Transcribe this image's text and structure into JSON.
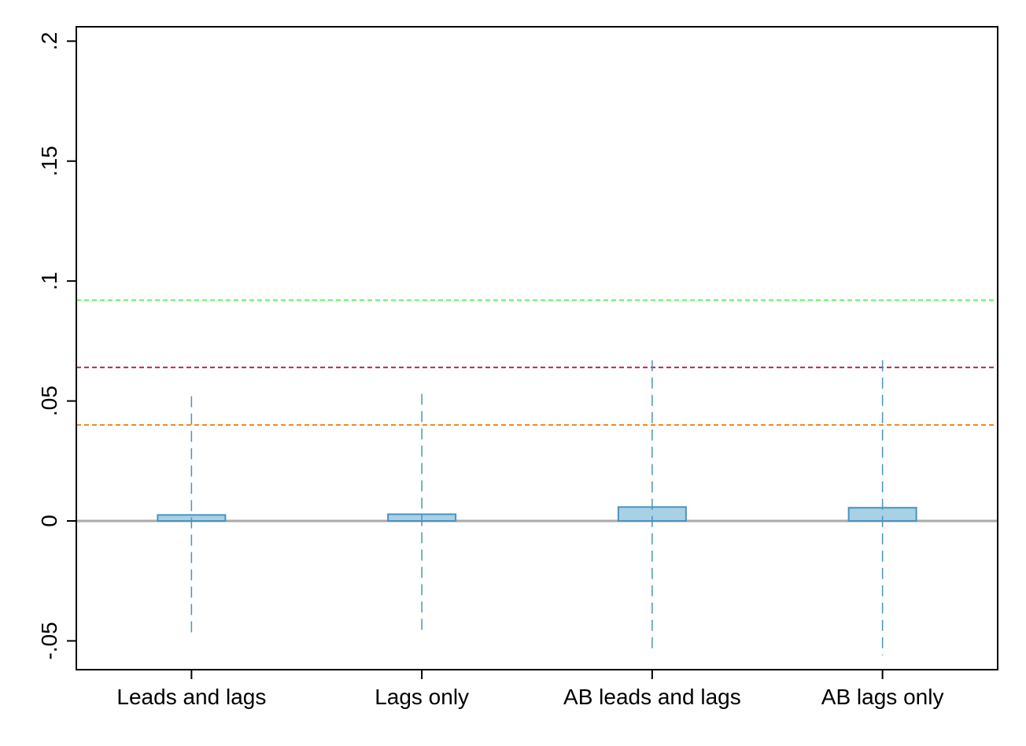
{
  "chart_data": {
    "type": "bar",
    "categories": [
      "Leads and lags",
      "Lags only",
      "AB leads and lags",
      "AB lags only"
    ],
    "values": [
      0.0025,
      0.0028,
      0.0058,
      0.0055
    ],
    "error_bars": [
      {
        "low": -0.049,
        "high": 0.052
      },
      {
        "low": -0.048,
        "high": 0.053
      },
      {
        "low": -0.055,
        "high": 0.067
      },
      {
        "low": -0.056,
        "high": 0.067
      }
    ],
    "reference_lines": [
      {
        "value": 0.092,
        "color": "#66ee66"
      },
      {
        "value": 0.064,
        "color": "#c0264a"
      },
      {
        "value": 0.04,
        "color": "#f08a24"
      },
      {
        "value": 0.0,
        "color": "#aaaaaa"
      }
    ],
    "yticks": [
      -0.05,
      0,
      0.05,
      0.1,
      0.15,
      0.2
    ],
    "ytick_labels": [
      "-.05",
      "0",
      ".05",
      ".1",
      ".15",
      ".2"
    ],
    "ylim": [
      -0.062,
      0.206
    ],
    "title": "",
    "xlabel": "",
    "ylabel": "",
    "grid": false,
    "bar_fill": "#a8d1e5",
    "bar_stroke": "#4a93bf",
    "errorbar_color": "#4a93bf"
  }
}
